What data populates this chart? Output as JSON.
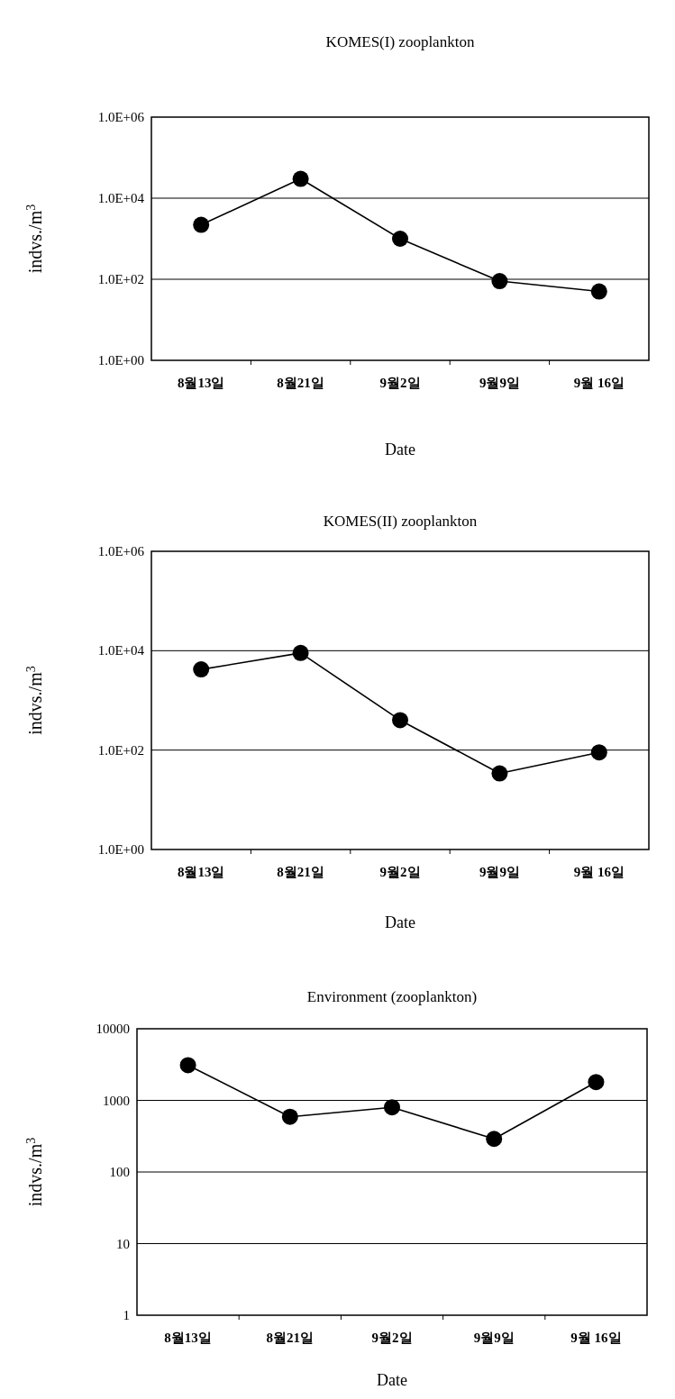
{
  "chart_data": [
    {
      "type": "line",
      "title": "KOMES(I) zooplankton",
      "xlabel": "Date",
      "ylabel": "indvs./m$^{3}$",
      "categories": [
        "8월13일",
        "8월21일",
        "9월2일",
        "9월9일",
        "9월 16일"
      ],
      "series": [
        {
          "color": "#000000",
          "values": [
            2200,
            30000,
            1000,
            90,
            50
          ]
        }
      ],
      "log": true,
      "ylim": [
        1,
        1000000
      ],
      "yticks": [
        {
          "value": 1,
          "label": "1.0E+00"
        },
        {
          "value": 100,
          "label": "1.0E+02"
        },
        {
          "value": 10000,
          "label": "1.0E+04"
        },
        {
          "value": 1000000,
          "label": "1.0E+06"
        }
      ],
      "grid": "y",
      "marker": "circle"
    },
    {
      "type": "line",
      "title": "KOMES(II) zooplankton",
      "xlabel": "Date",
      "ylabel": "indvs./m$^{3}$",
      "categories": [
        "8월13일",
        "8월21일",
        "9월2일",
        "9월9일",
        "9월 16일"
      ],
      "series": [
        {
          "color": "#000000",
          "values": [
            4200,
            9000,
            400,
            34,
            90
          ]
        }
      ],
      "log": true,
      "ylim": [
        1,
        1000000
      ],
      "yticks": [
        {
          "value": 1,
          "label": "1.0E+00"
        },
        {
          "value": 100,
          "label": "1.0E+02"
        },
        {
          "value": 10000,
          "label": "1.0E+04"
        },
        {
          "value": 1000000,
          "label": "1.0E+06"
        }
      ],
      "grid": "y",
      "marker": "circle"
    },
    {
      "type": "line",
      "title": "Environment (zooplankton)",
      "xlabel": "Date",
      "ylabel": "indvs./m$^{3}$",
      "categories": [
        "8월13일",
        "8월21일",
        "9월2일",
        "9월9일",
        "9월 16일"
      ],
      "series": [
        {
          "color": "#000000",
          "values": [
            3100,
            590,
            800,
            290,
            1800
          ]
        }
      ],
      "log": true,
      "ylim": [
        1,
        10000
      ],
      "yticks": [
        1,
        10,
        100,
        1000,
        10000
      ],
      "grid": "y",
      "marker": "circle"
    }
  ]
}
